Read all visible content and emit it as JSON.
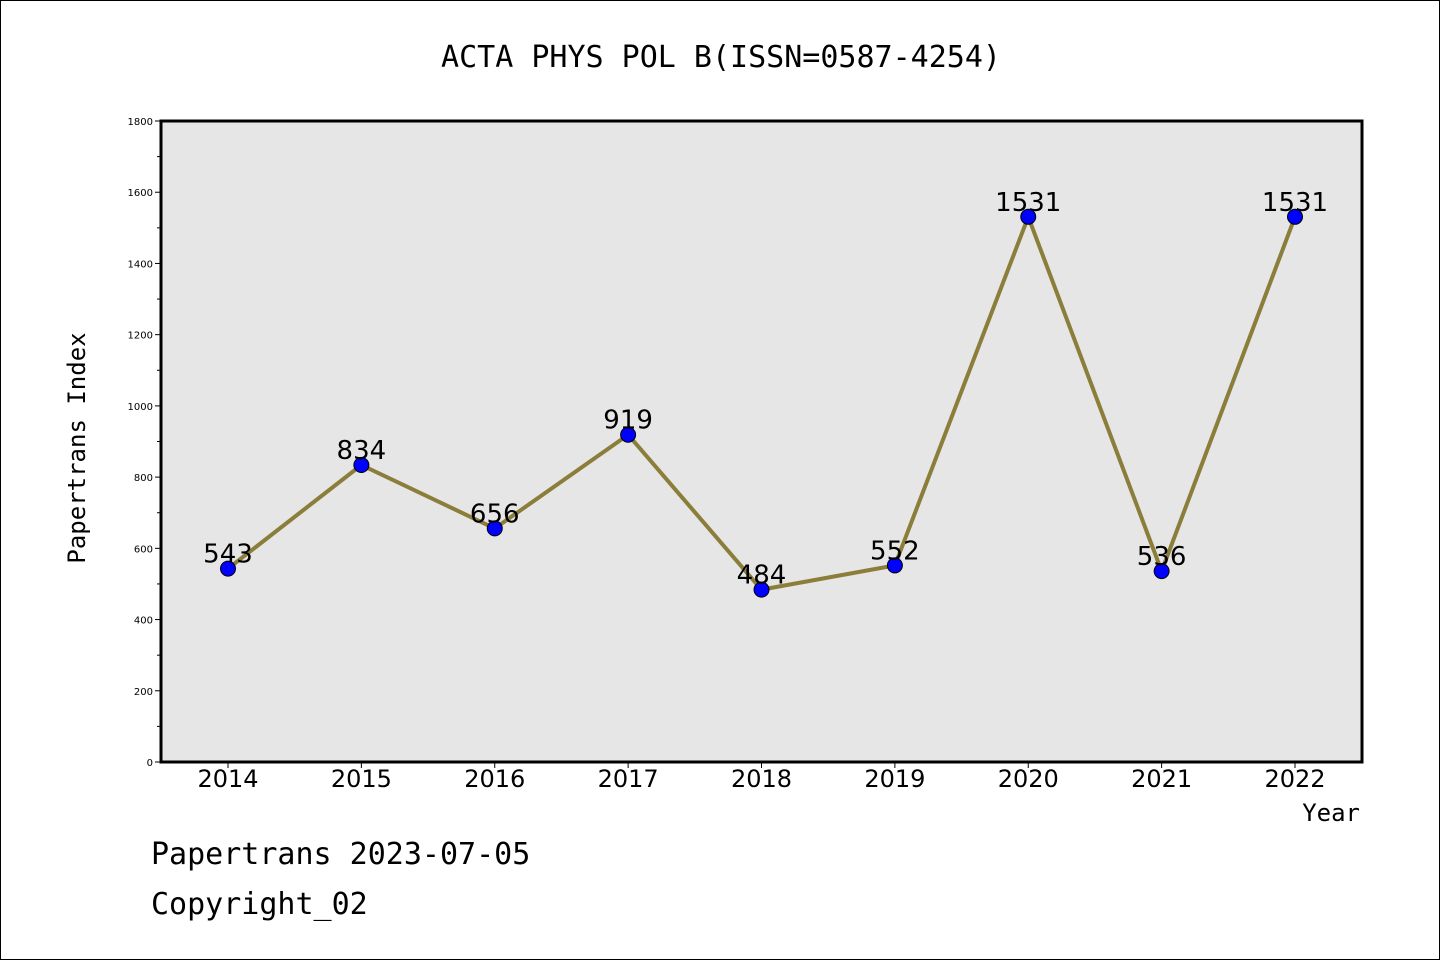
{
  "footer": {
    "line1": "Papertrans 2023-07-05",
    "line2": "Copyright_02"
  },
  "chart_data": {
    "type": "line",
    "title": "ACTA PHYS POL B(ISSN=0587-4254)",
    "xlabel": "Year",
    "ylabel": "Papertrans Index",
    "categories": [
      "2014",
      "2015",
      "2016",
      "2017",
      "2018",
      "2019",
      "2020",
      "2021",
      "2022"
    ],
    "series": [
      {
        "values": [
          543,
          834,
          656,
          919,
          484,
          552,
          1531,
          536,
          1531
        ]
      }
    ],
    "ylim": [
      0,
      1800
    ],
    "yticks": [
      0,
      200,
      400,
      600,
      800,
      1000,
      1200,
      1400,
      1600,
      1800
    ],
    "grid": false,
    "colors": {
      "line": "#8b7d3a",
      "marker": "#0000ff",
      "plot_background": "#e6e6e6"
    }
  }
}
